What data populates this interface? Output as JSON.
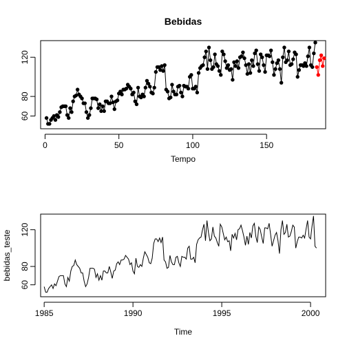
{
  "chart_data": [
    {
      "type": "line",
      "title": "Bebidas",
      "xlabel": "Tempo",
      "ylabel": "",
      "xlim": [
        -3,
        190
      ],
      "ylim": [
        47,
        137
      ],
      "x_ticks": [
        0,
        50,
        100,
        150
      ],
      "y_ticks": [
        60,
        80,
        120
      ],
      "markers": true,
      "series": [
        {
          "color": "#000000",
          "x": [
            1,
            2,
            3,
            4,
            5,
            6,
            7,
            8,
            9,
            10,
            11,
            12,
            13,
            14,
            15,
            16,
            17,
            18,
            19,
            20,
            21,
            22,
            23,
            24,
            25,
            26,
            27,
            28,
            29,
            30,
            31,
            32,
            33,
            34,
            35,
            36,
            37,
            38,
            39,
            40,
            41,
            42,
            43,
            44,
            45,
            46,
            47,
            48,
            49,
            50,
            51,
            52,
            53,
            54,
            55,
            56,
            57,
            58,
            59,
            60,
            61,
            62,
            63,
            64,
            65,
            66,
            67,
            68,
            69,
            70,
            71,
            72,
            73,
            74,
            75,
            76,
            77,
            78,
            79,
            80,
            81,
            82,
            83,
            84,
            85,
            86,
            87,
            88,
            89,
            90,
            91,
            92,
            93,
            94,
            95,
            96,
            97,
            98,
            99,
            100,
            101,
            102,
            103,
            104,
            105,
            106,
            107,
            108,
            109,
            110,
            111,
            112,
            113,
            114,
            115,
            116,
            117,
            118,
            119,
            120,
            121,
            122,
            123,
            124,
            125,
            126,
            127,
            128,
            129,
            130,
            131,
            132,
            133,
            134,
            135,
            136,
            137,
            138,
            139,
            140,
            141,
            142,
            143,
            144,
            145,
            146,
            147,
            148,
            149,
            150,
            151,
            152,
            153,
            154,
            155,
            156,
            157,
            158,
            159,
            160,
            161,
            162,
            163,
            164,
            165,
            166,
            167,
            168,
            169,
            170,
            171,
            172,
            173,
            174,
            175,
            176,
            177,
            178,
            179,
            180,
            181,
            182,
            183
          ],
          "y": [
            58,
            52,
            52,
            56,
            58,
            60,
            56,
            61,
            59,
            64,
            69,
            70,
            70,
            70,
            61,
            58,
            68,
            64,
            75,
            80,
            81,
            87,
            82,
            80,
            78,
            73,
            73,
            64,
            58,
            61,
            68,
            78,
            78,
            78,
            77,
            68,
            72,
            65,
            70,
            65,
            75,
            75,
            73,
            73,
            80,
            74,
            67,
            75,
            76,
            83,
            85,
            82,
            87,
            87,
            88,
            92,
            90,
            88,
            82,
            84,
            75,
            72,
            89,
            80,
            79,
            82,
            80,
            89,
            96,
            93,
            90,
            84,
            83,
            89,
            105,
            110,
            110,
            107,
            111,
            106,
            112,
            87,
            85,
            78,
            79,
            92,
            85,
            82,
            82,
            90,
            91,
            84,
            80,
            91,
            90,
            90,
            88,
            100,
            102,
            88,
            88,
            90,
            84,
            104,
            109,
            111,
            112,
            120,
            126,
            108,
            130,
            117,
            108,
            110,
            123,
            113,
            111,
            106,
            102,
            126,
            123,
            116,
            109,
            112,
            107,
            108,
            97,
            115,
            111,
            116,
            109,
            120,
            121,
            125,
            119,
            112,
            103,
            113,
            104,
            117,
            111,
            124,
            127,
            113,
            106,
            123,
            120,
            112,
            105,
            122,
            122,
            121,
            127,
            115,
            102,
            108,
            114,
            117,
            108,
            94,
            120,
            130,
            115,
            117,
            126,
            112,
            113,
            118,
            125,
            123,
            100,
            107,
            112,
            112,
            111,
            114,
            111,
            121,
            130,
            112,
            110,
            124,
            135
          ]
        },
        {
          "color": "#ff0000",
          "x": [
            184,
            185,
            186,
            187,
            188,
            189
          ],
          "y": [
            110,
            102,
            117,
            122,
            111,
            119
          ]
        }
      ]
    },
    {
      "type": "line",
      "title": "",
      "xlabel": "Time",
      "ylabel": "bebidas_teste",
      "xlim": [
        1984.8,
        2000.85
      ],
      "ylim": [
        47,
        137
      ],
      "x_ticks": [
        1985,
        1990,
        1995,
        2000
      ],
      "y_ticks": [
        60,
        80,
        120
      ],
      "x_start": 1985,
      "frequency": 12,
      "markers": false,
      "series": [
        {
          "color": "#000000",
          "y": [
            58,
            52,
            52,
            56,
            58,
            60,
            56,
            61,
            59,
            64,
            69,
            70,
            70,
            70,
            61,
            58,
            68,
            64,
            75,
            80,
            81,
            87,
            82,
            80,
            78,
            73,
            73,
            64,
            58,
            61,
            68,
            78,
            78,
            78,
            77,
            68,
            72,
            65,
            70,
            65,
            75,
            75,
            73,
            73,
            80,
            74,
            67,
            75,
            76,
            83,
            85,
            82,
            87,
            87,
            88,
            92,
            90,
            88,
            82,
            84,
            75,
            72,
            89,
            80,
            79,
            82,
            80,
            89,
            96,
            93,
            90,
            84,
            83,
            89,
            105,
            110,
            110,
            107,
            111,
            106,
            112,
            87,
            85,
            78,
            79,
            92,
            85,
            82,
            82,
            90,
            91,
            84,
            80,
            91,
            90,
            90,
            88,
            100,
            102,
            88,
            88,
            90,
            84,
            104,
            109,
            111,
            112,
            120,
            126,
            108,
            130,
            117,
            108,
            110,
            123,
            113,
            111,
            106,
            102,
            126,
            123,
            116,
            109,
            112,
            107,
            108,
            97,
            115,
            111,
            116,
            109,
            120,
            121,
            125,
            119,
            112,
            103,
            113,
            104,
            117,
            111,
            124,
            127,
            113,
            106,
            123,
            120,
            112,
            105,
            122,
            122,
            121,
            127,
            115,
            102,
            108,
            114,
            117,
            108,
            94,
            120,
            130,
            115,
            117,
            126,
            112,
            113,
            118,
            125,
            123,
            100,
            107,
            112,
            112,
            111,
            114,
            111,
            121,
            130,
            112,
            110,
            124,
            135,
            102,
            100
          ]
        }
      ]
    }
  ]
}
